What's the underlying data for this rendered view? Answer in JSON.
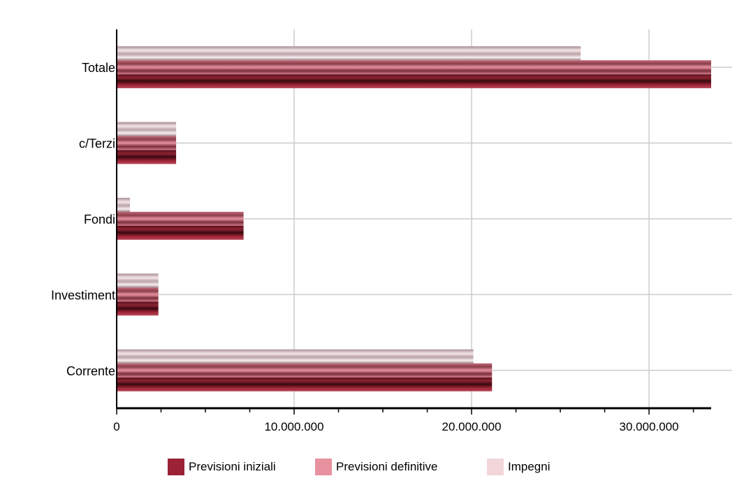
{
  "chart_data": {
    "type": "bar",
    "orientation": "horizontal",
    "title": "",
    "xlabel": "",
    "ylabel": "",
    "categories": [
      "Totale",
      "c/Terzi",
      "Fondi",
      "Investiment",
      "Corrente"
    ],
    "series": [
      {
        "name": "Previsioni iniziali",
        "color": "#9B2335",
        "values": [
          33500000,
          3350000,
          7150000,
          2350000,
          21150000
        ]
      },
      {
        "name": "Previsioni definitive",
        "color": "#E8919F",
        "values": [
          33500000,
          3350000,
          7150000,
          2350000,
          21150000
        ]
      },
      {
        "name": "Impegni",
        "color": "#F2D6DA",
        "values": [
          26150000,
          3350000,
          750000,
          2350000,
          20100000
        ]
      }
    ],
    "xlim": [
      0,
      33500000
    ],
    "xticks": [
      0,
      10000000,
      20000000,
      30000000
    ],
    "xtick_labels": [
      "0",
      "10.000.000",
      "20.000.000",
      "30.000.000"
    ],
    "grid": true,
    "legend": "bottom"
  }
}
